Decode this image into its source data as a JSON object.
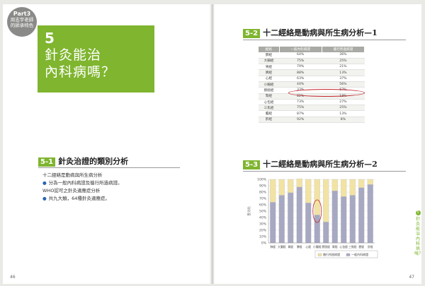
{
  "left_page": {
    "badge": {
      "part": "Part3",
      "line1": "周志宇老師",
      "line2": "的師承特色"
    },
    "hero": {
      "number": "5",
      "title_line1": "針灸能治",
      "title_line2": "內科病嗎？"
    },
    "section": {
      "number": "5-1",
      "title": "針灸治證的類別分析",
      "lines": [
        {
          "text": "十二經絡是動病與所生病分析",
          "bullet": false
        },
        {
          "text": "分為一般內科病證及循行所過病證。",
          "bullet": true
        },
        {
          "text": "WHO認可之針灸適應症分析",
          "bullet": false
        },
        {
          "text": "共九大類，64種針灸適應症。",
          "bullet": true
        }
      ]
    },
    "page_number": "46"
  },
  "right_page": {
    "section1": {
      "number": "5-2",
      "title": "十二經絡是動病與所生病分析—1"
    },
    "table": {
      "headers": [
        "經絡",
        "一般內科病證",
        "循行所過病證"
      ],
      "rows": [
        [
          "肺經",
          "64%",
          "36%"
        ],
        [
          "大腸經",
          "75%",
          "25%"
        ],
        [
          "胃經",
          "79%",
          "21%"
        ],
        [
          "脾經",
          "88%",
          "13%"
        ],
        [
          "心經",
          "63%",
          "37%"
        ],
        [
          "小腸經",
          "44%",
          "56%"
        ],
        [
          "膀胱經",
          "33%",
          "67%"
        ],
        [
          "腎經",
          "82%",
          "18%"
        ],
        [
          "心包經",
          "73%",
          "27%"
        ],
        [
          "三焦經",
          "75%",
          "25%"
        ],
        [
          "膽經",
          "87%",
          "13%"
        ],
        [
          "肝經",
          "92%",
          "8%"
        ]
      ]
    },
    "section2": {
      "number": "5-3",
      "title": "十二經絡是動病與所生病分析—2"
    },
    "side_tab": {
      "number": "5",
      "text": "針灸能治內科病嗎？"
    },
    "page_number": "47"
  },
  "chart_data": {
    "type": "bar",
    "stacked": true,
    "categories": [
      "肺經",
      "大腸經",
      "胃經",
      "脾經",
      "心經",
      "小腸經",
      "膀胱經",
      "腎經",
      "心包經",
      "三焦經",
      "膽經",
      "肝經"
    ],
    "series": [
      {
        "name": "一般內科病證",
        "values": [
          64,
          75,
          79,
          88,
          63,
          44,
          33,
          82,
          73,
          75,
          87,
          92
        ],
        "color": "#a7a8c2"
      },
      {
        "name": "循行所過病證",
        "values": [
          36,
          25,
          21,
          13,
          37,
          56,
          67,
          18,
          27,
          25,
          13,
          8
        ],
        "color": "#f2e3a3"
      }
    ],
    "yticks": [
      "0%",
      "10%",
      "20%",
      "30%",
      "40%",
      "50%",
      "60%",
      "70%",
      "80%",
      "90%",
      "100%"
    ],
    "ylim": [
      0,
      100
    ],
    "ylabel": "百分比",
    "legend_position": "bottom-right"
  }
}
